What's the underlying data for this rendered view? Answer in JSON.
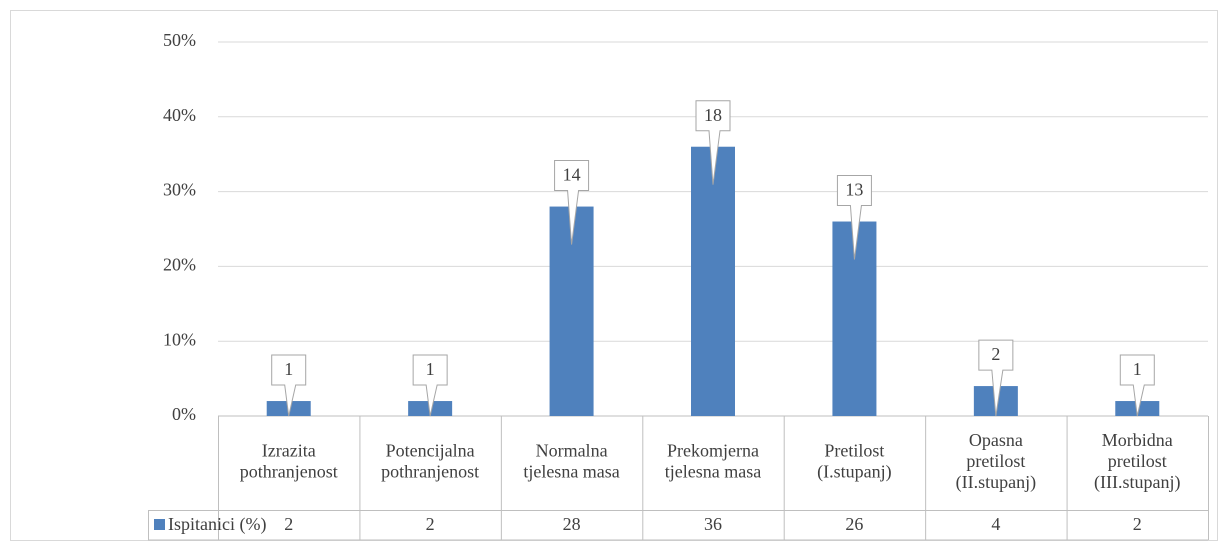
{
  "chart_data": {
    "type": "bar",
    "categories": [
      [
        "Izrazita",
        "pothranjenost"
      ],
      [
        "Potencijalna",
        "pothranjenost"
      ],
      [
        "Normalna",
        "tjelesna masa"
      ],
      [
        "Prekomjerna",
        "tjelesna masa"
      ],
      [
        "Pretilost",
        "(I.stupanj)"
      ],
      [
        "Opasna",
        "pretilost",
        "(II.stupanj)"
      ],
      [
        "Morbidna",
        "pretilost",
        "(III.stupanj)"
      ]
    ],
    "series": [
      {
        "name": "Ispitanici (%)",
        "color": "#4f81bd",
        "values": [
          2,
          2,
          28,
          36,
          26,
          4,
          2
        ]
      }
    ],
    "data_labels": [
      1,
      1,
      14,
      18,
      13,
      2,
      1
    ],
    "ylim": [
      0,
      50
    ],
    "yticks": [
      {
        "value": 0,
        "label": "0%"
      },
      {
        "value": 10,
        "label": "10%"
      },
      {
        "value": 20,
        "label": "20%"
      },
      {
        "value": 30,
        "label": "30%"
      },
      {
        "value": 40,
        "label": "40%"
      },
      {
        "value": 50,
        "label": "50%"
      }
    ],
    "grid": true
  }
}
